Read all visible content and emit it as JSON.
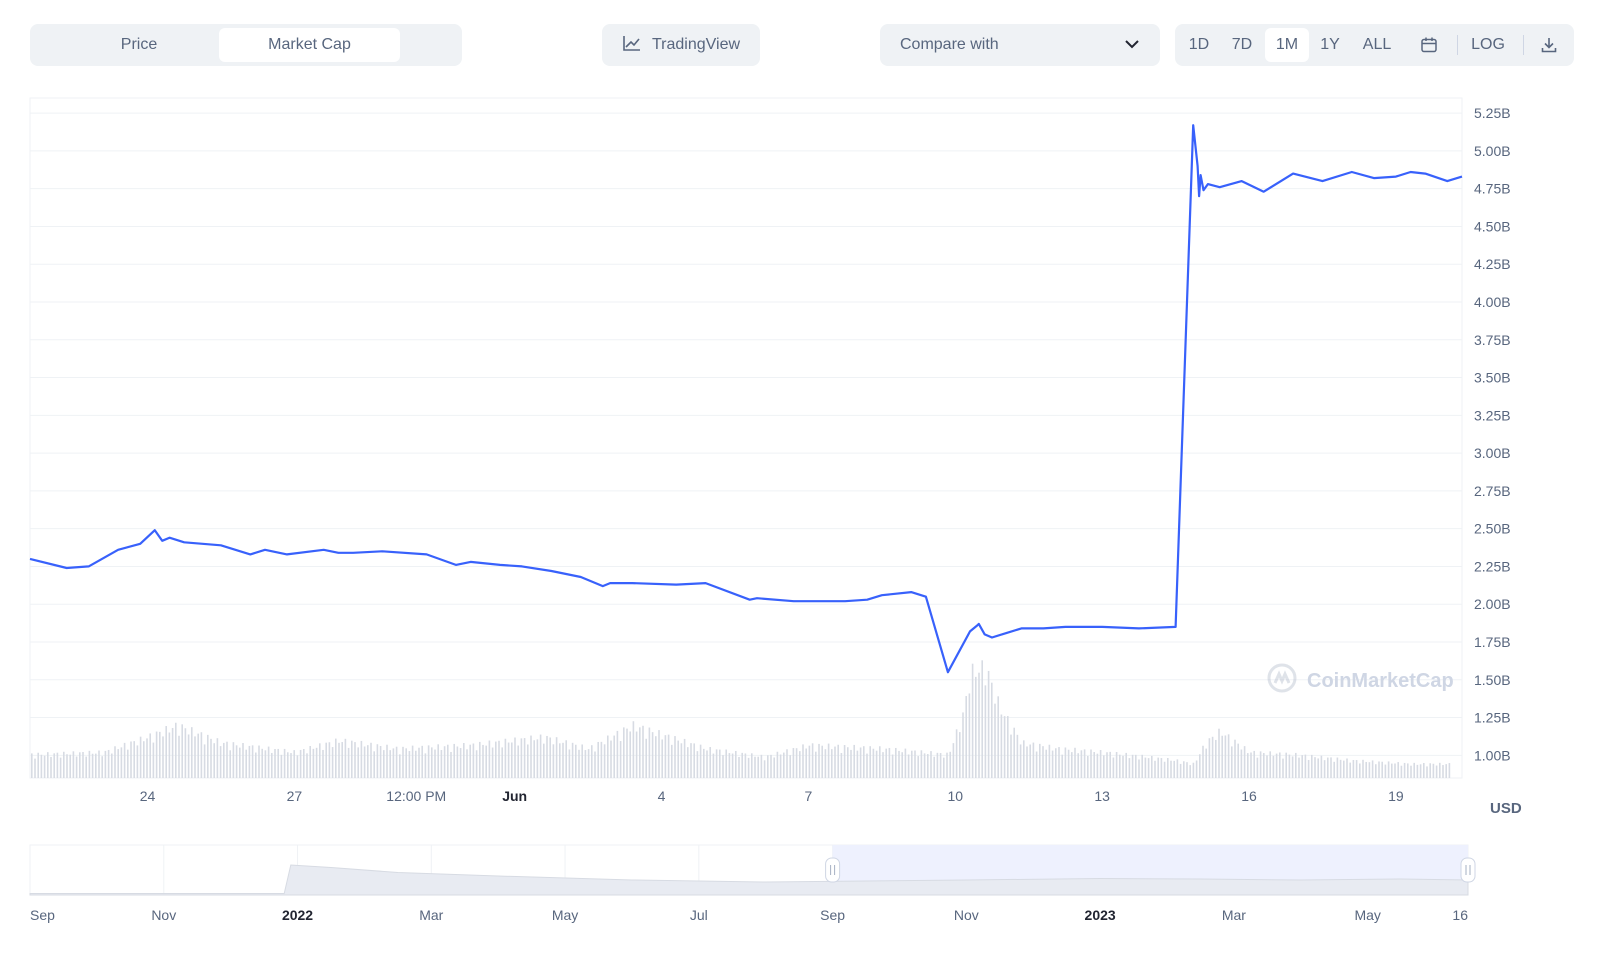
{
  "toolbar": {
    "tabs": [
      {
        "label": "Price",
        "active": false
      },
      {
        "label": "Market Cap",
        "active": true
      }
    ],
    "tradingview_label": "TradingView",
    "compare_label": "Compare with",
    "ranges": [
      {
        "label": "1D",
        "active": false
      },
      {
        "label": "7D",
        "active": false
      },
      {
        "label": "1M",
        "active": true
      },
      {
        "label": "1Y",
        "active": false
      },
      {
        "label": "ALL",
        "active": false
      }
    ],
    "log_label": "LOG",
    "icons": {
      "tradingview": "chart-line-icon",
      "compare": "chevron-down-icon",
      "calendar": "calendar-icon",
      "download": "download-icon"
    }
  },
  "watermark": "CoinMarketCap",
  "currency_label": "USD",
  "colors": {
    "line": "#3861fb",
    "volume": "#d7dbe3",
    "grid": "#eff2f5",
    "navigator_fill": "#e8ebf2",
    "selection": "#eef1fe"
  },
  "chart_data": {
    "type": "line",
    "title": "",
    "xlabel": "",
    "ylabel": "",
    "y_unit": "billions USD",
    "ylim": [
      0.85,
      5.35
    ],
    "yticks": [
      1.0,
      1.25,
      1.5,
      1.75,
      2.0,
      2.25,
      2.5,
      2.75,
      3.0,
      3.25,
      3.5,
      3.75,
      4.0,
      4.25,
      4.5,
      4.75,
      5.0,
      5.25
    ],
    "ytick_labels": [
      "1.00B",
      "1.25B",
      "1.50B",
      "1.75B",
      "2.00B",
      "2.25B",
      "2.50B",
      "2.75B",
      "3.00B",
      "3.25B",
      "3.50B",
      "3.75B",
      "4.00B",
      "4.25B",
      "4.50B",
      "4.75B",
      "5.00B",
      "5.25B"
    ],
    "xlim": [
      20.2,
      29.95
    ],
    "xticks": [
      {
        "x": 21.0,
        "label": "24",
        "bold": false
      },
      {
        "x": 22.0,
        "label": "27",
        "bold": false
      },
      {
        "x": 22.83,
        "label": "12:00 PM",
        "bold": false
      },
      {
        "x": 23.5,
        "label": "Jun",
        "bold": true
      },
      {
        "x": 24.5,
        "label": "4",
        "bold": false
      },
      {
        "x": 25.5,
        "label": "7",
        "bold": false
      },
      {
        "x": 26.5,
        "label": "10",
        "bold": false
      },
      {
        "x": 27.5,
        "label": "13",
        "bold": false
      },
      {
        "x": 28.5,
        "label": "16",
        "bold": false
      },
      {
        "x": 29.5,
        "label": "19",
        "bold": false
      }
    ],
    "series": [
      {
        "name": "",
        "x": [
          20.2,
          20.45,
          20.6,
          20.8,
          20.95,
          21.05,
          21.1,
          21.15,
          21.25,
          21.5,
          21.7,
          21.8,
          21.95,
          22.2,
          22.3,
          22.4,
          22.6,
          22.9,
          23.1,
          23.2,
          23.4,
          23.55,
          23.75,
          23.95,
          24.1,
          24.15,
          24.3,
          24.6,
          24.8,
          25.1,
          25.15,
          25.4,
          25.6,
          25.75,
          25.9,
          26.0,
          26.2,
          26.3,
          26.45,
          26.6,
          26.65,
          26.66,
          26.7,
          26.75,
          26.85,
          26.95,
          27.1,
          27.25,
          27.5,
          27.75,
          28.0,
          28.12,
          28.15,
          28.16,
          28.17,
          28.19,
          28.22,
          28.3,
          28.45,
          28.6,
          28.8,
          29.0,
          29.2,
          29.35,
          29.5,
          29.6,
          29.7,
          29.85,
          29.95
        ],
        "y": [
          2.3,
          2.24,
          2.25,
          2.36,
          2.4,
          2.49,
          2.42,
          2.44,
          2.41,
          2.39,
          2.33,
          2.36,
          2.33,
          2.36,
          2.34,
          2.34,
          2.35,
          2.33,
          2.26,
          2.28,
          2.26,
          2.25,
          2.22,
          2.18,
          2.12,
          2.14,
          2.14,
          2.13,
          2.14,
          2.03,
          2.04,
          2.02,
          2.02,
          2.02,
          2.03,
          2.06,
          2.08,
          2.05,
          1.55,
          1.82,
          1.86,
          1.87,
          1.8,
          1.78,
          1.81,
          1.84,
          1.84,
          1.85,
          1.85,
          1.84,
          1.85,
          5.17,
          4.9,
          4.7,
          4.84,
          4.74,
          4.78,
          4.76,
          4.8,
          4.73,
          4.85,
          4.8,
          4.86,
          4.82,
          4.83,
          4.86,
          4.85,
          4.8,
          4.83
        ]
      }
    ],
    "volume": {
      "x": [
        20.2,
        20.7,
        21.0,
        21.2,
        21.5,
        22.0,
        22.3,
        22.7,
        23.2,
        23.7,
        24.0,
        24.3,
        24.8,
        25.2,
        25.5,
        26.0,
        26.45,
        26.55,
        26.6,
        26.7,
        26.8,
        26.95,
        27.2,
        27.5,
        27.8,
        28.0,
        28.12,
        28.2,
        28.3,
        28.5,
        28.8,
        29.2,
        29.6,
        29.95
      ],
      "y": [
        0.2,
        0.22,
        0.35,
        0.45,
        0.3,
        0.22,
        0.32,
        0.25,
        0.28,
        0.35,
        0.25,
        0.45,
        0.25,
        0.18,
        0.28,
        0.25,
        0.2,
        0.55,
        0.9,
        0.95,
        0.6,
        0.3,
        0.25,
        0.22,
        0.18,
        0.15,
        0.12,
        0.3,
        0.4,
        0.22,
        0.2,
        0.15,
        0.12,
        0.12
      ]
    },
    "navigator": {
      "labels": [
        {
          "label": "Sep",
          "bold": false
        },
        {
          "label": "Nov",
          "bold": false
        },
        {
          "label": "2022",
          "bold": true
        },
        {
          "label": "Mar",
          "bold": false
        },
        {
          "label": "May",
          "bold": false
        },
        {
          "label": "Jul",
          "bold": false
        },
        {
          "label": "Sep",
          "bold": false
        },
        {
          "label": "Nov",
          "bold": false
        },
        {
          "label": "2023",
          "bold": true
        },
        {
          "label": "Mar",
          "bold": false
        },
        {
          "label": "May",
          "bold": false
        },
        {
          "label": "16",
          "bold": false
        }
      ],
      "x_month_index": [
        0,
        2,
        4,
        6,
        8,
        10,
        12,
        14,
        16,
        18,
        20,
        21.5
      ],
      "series_x": [
        0,
        3.8,
        3.9,
        4.5,
        5.5,
        7,
        9,
        11,
        12.5,
        14,
        16,
        17.5,
        19,
        20.5,
        21.5
      ],
      "series_y": [
        0.03,
        0.03,
        0.6,
        0.55,
        0.45,
        0.38,
        0.3,
        0.26,
        0.28,
        0.3,
        0.33,
        0.32,
        0.3,
        0.32,
        0.3
      ],
      "selection_start": 12.0,
      "selection_end": 21.5
    }
  }
}
